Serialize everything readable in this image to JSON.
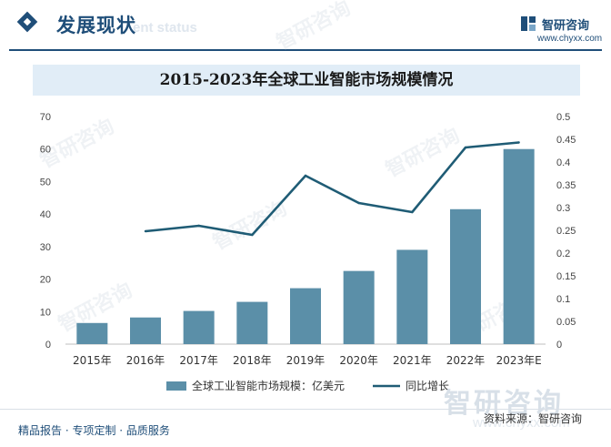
{
  "header": {
    "section_title": "发展现状",
    "section_subtitle": "ent status",
    "brand_name": "智研咨询",
    "brand_url": "www.chyxx.com"
  },
  "watermark": {
    "text": "智研咨询",
    "url": "www.chyxx.com"
  },
  "footer": {
    "left": "精品报告 · 专项定制 · 品质服务",
    "source": "资料来源：智研咨询"
  },
  "colors": {
    "bar": "#5b8fa8",
    "line": "#1f5c75",
    "accent": "#1f4e79",
    "title_band": "#e1edf7"
  },
  "chart_data": {
    "type": "bar",
    "title": "2015-2023年全球工业智能市场规模情况",
    "categories": [
      "2015年",
      "2016年",
      "2017年",
      "2018年",
      "2019年",
      "2020年",
      "2021年",
      "2022年",
      "2023年E"
    ],
    "series": [
      {
        "name": "全球工业智能市场规模：亿美元",
        "type": "bar",
        "axis": "left",
        "values": [
          6.5,
          8.2,
          10.2,
          13.0,
          17.2,
          22.5,
          29.0,
          41.5,
          60.0
        ]
      },
      {
        "name": "同比增长",
        "type": "line",
        "axis": "right",
        "values": [
          null,
          0.248,
          0.26,
          0.24,
          0.37,
          0.31,
          0.29,
          0.432,
          0.443
        ]
      }
    ],
    "y_left": {
      "min": 0,
      "max": 70,
      "ticks": [
        "0",
        "10",
        "20",
        "30",
        "40",
        "50",
        "60",
        "70"
      ]
    },
    "y_right": {
      "min": 0,
      "max": 0.5,
      "ticks": [
        "0",
        "0.05",
        "0.1",
        "0.15",
        "0.2",
        "0.25",
        "0.3",
        "0.35",
        "0.4",
        "0.45",
        "0.5"
      ]
    },
    "grid": false,
    "legend_position": "bottom"
  }
}
